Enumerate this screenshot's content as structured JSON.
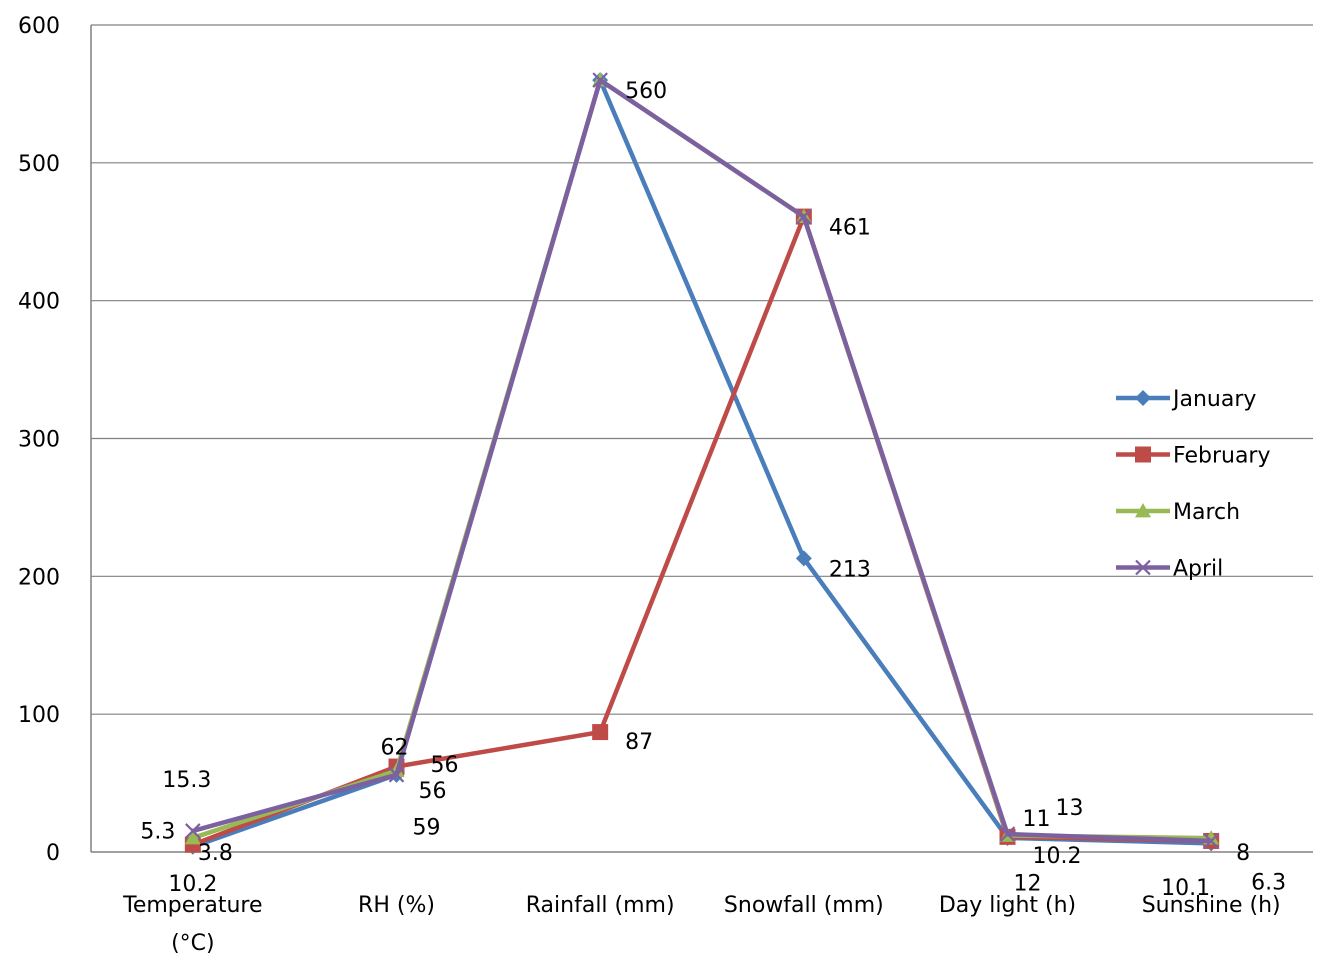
{
  "chart_data": {
    "type": "line",
    "categories": [
      "Temperature (°C)",
      "RH (%)",
      "Rainfall (mm)",
      "Snowfall (mm)",
      "Day light (h)",
      "Sunshine (h)"
    ],
    "ylim": [
      0,
      600
    ],
    "yticks": [
      0,
      100,
      200,
      300,
      400,
      500,
      600
    ],
    "grid": true,
    "legend_position": "right",
    "series": [
      {
        "name": "January",
        "color": "#4a7ebb",
        "marker": "diamond",
        "values": [
          3.8,
          56,
          560,
          213,
          10.2,
          6.3
        ]
      },
      {
        "name": "February",
        "color": "#be4b48",
        "marker": "square",
        "values": [
          5.3,
          62,
          87,
          461,
          11,
          8
        ]
      },
      {
        "name": "March",
        "color": "#98b954",
        "marker": "triangle",
        "values": [
          10.2,
          59,
          560,
          461,
          12,
          10.1
        ]
      },
      {
        "name": "April",
        "color": "#7d60a0",
        "marker": "x",
        "values": [
          15.3,
          56,
          560,
          461,
          13,
          8
        ]
      }
    ],
    "data_labels": [
      {
        "text": "15.3",
        "cat": 0,
        "value": 15.3
      },
      {
        "text": "5.3",
        "cat": 0,
        "value": 5.3
      },
      {
        "text": "3.8",
        "cat": 0,
        "value": 3.8
      },
      {
        "text": "10.2",
        "cat": 0,
        "value": 10.2
      },
      {
        "text": "62",
        "cat": 1,
        "value": 62
      },
      {
        "text": "56",
        "cat": 1,
        "value": 56
      },
      {
        "text": "56",
        "cat": 1,
        "value": 56
      },
      {
        "text": "59",
        "cat": 1,
        "value": 59
      },
      {
        "text": "560",
        "cat": 2,
        "value": 560
      },
      {
        "text": "87",
        "cat": 2,
        "value": 87
      },
      {
        "text": "461",
        "cat": 3,
        "value": 461
      },
      {
        "text": "213",
        "cat": 3,
        "value": 213
      },
      {
        "text": "11",
        "cat": 4,
        "value": 11
      },
      {
        "text": "13",
        "cat": 4,
        "value": 13
      },
      {
        "text": "10.2",
        "cat": 4,
        "value": 10.2
      },
      {
        "text": "12",
        "cat": 4,
        "value": 12
      },
      {
        "text": "8",
        "cat": 5,
        "value": 8
      },
      {
        "text": "10.1",
        "cat": 5,
        "value": 10.1
      },
      {
        "text": "6.3",
        "cat": 5,
        "value": 6.3
      }
    ]
  }
}
